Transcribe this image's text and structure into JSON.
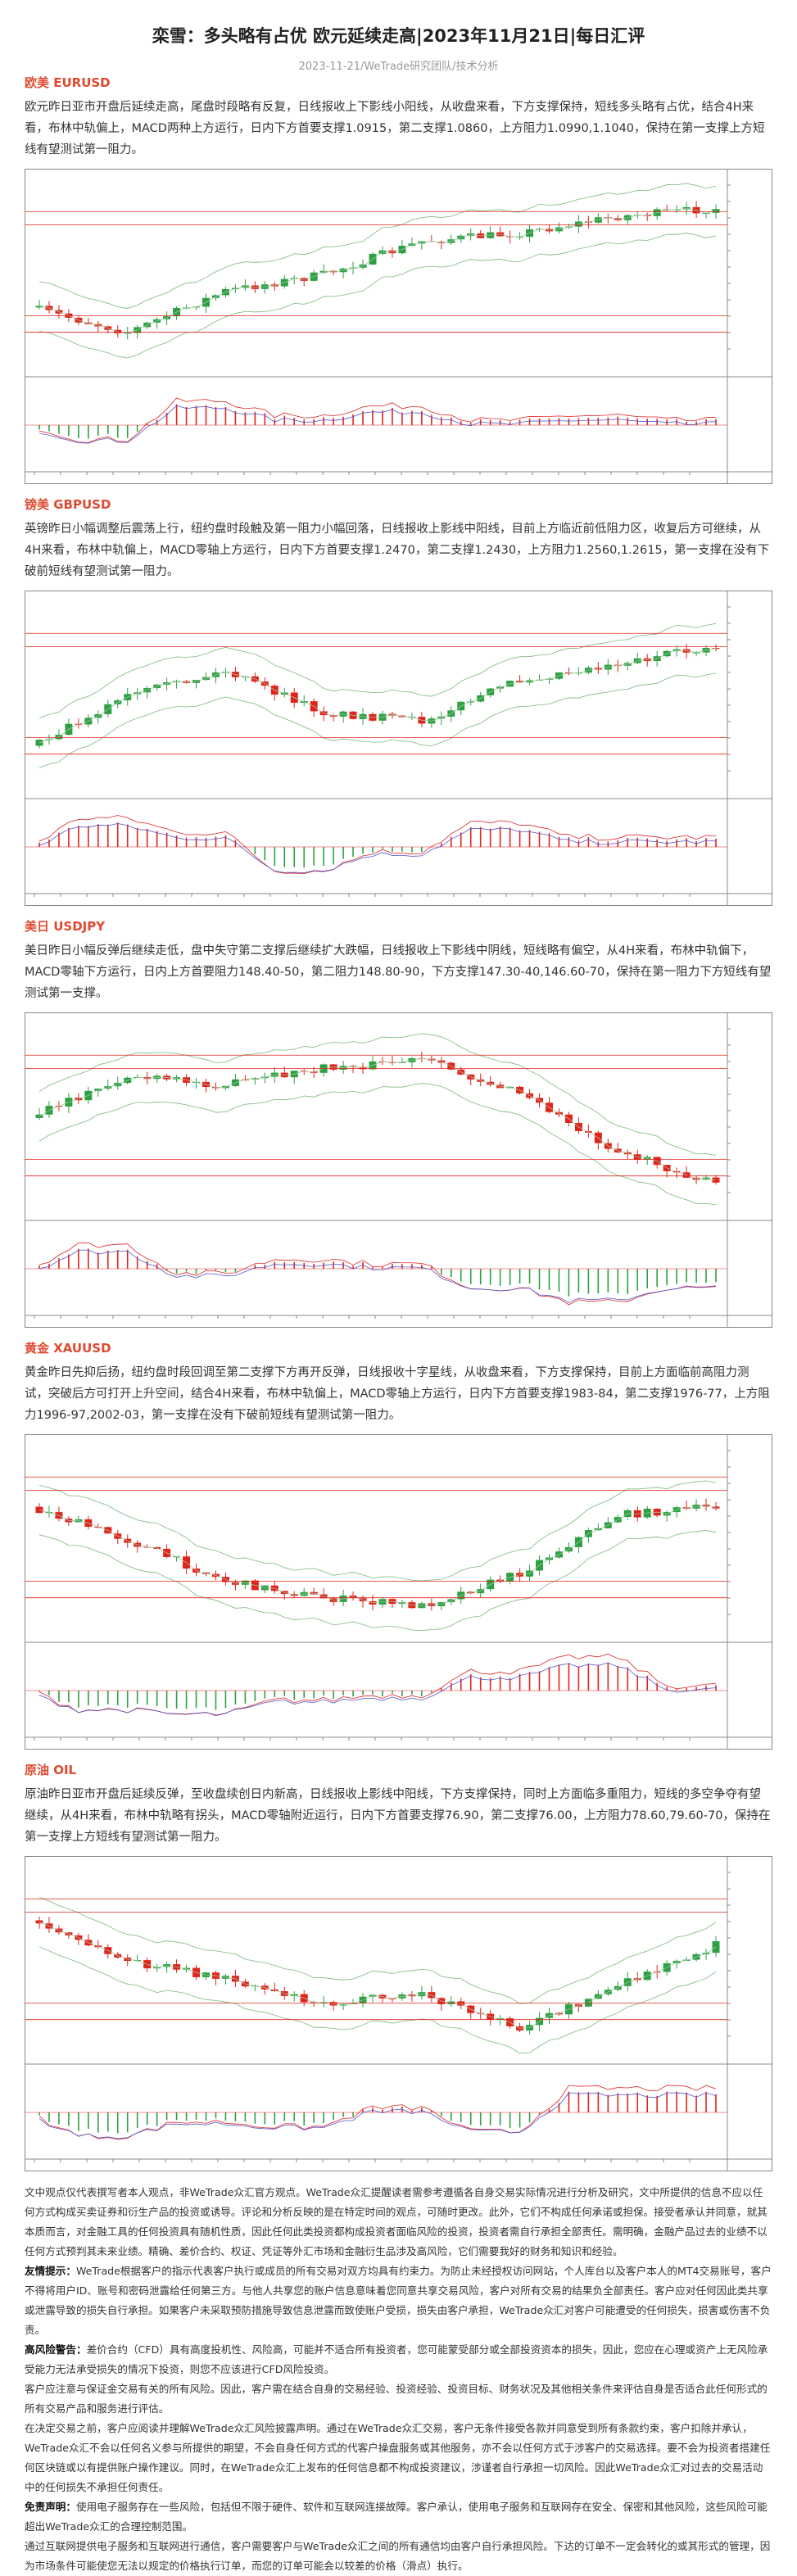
{
  "header": {
    "title": "栾雪：多头略有占优 欧元延续走高|2023年11月21日|每日汇评",
    "meta": "2023-11-21/WeTrade研究团队/技术分析"
  },
  "sections": [
    {
      "title": "欧美 EURUSD",
      "text": "欧元昨日亚市开盘后延续走高，尾盘时段略有反复，日线报收上下影线小阳线，从收盘来看，下方支撑保持，短线多头略有占优，结合4H来看，布林中轨偏上，MACD两种上方运行，日内下方首要支撑1.0915，第二支撑1.0860，上方阻力1.0990,1.1040，保持在第一支撑上方短线有望测试第一阻力。"
    },
    {
      "title": "镑美 GBPUSD",
      "text": "英镑昨日小幅调整后震荡上行，纽约盘时段触及第一阻力小幅回落，日线报收上影线中阳线，目前上方临近前低阻力区，收复后方可继续，从4H来看，布林中轨偏上，MACD零轴上方运行，日内下方首要支撑1.2470，第二支撑1.2430，上方阻力1.2560,1.2615，第一支撑在没有下破前短线有望测试第一阻力。"
    },
    {
      "title": "美日 USDJPY",
      "text": "美日昨日小幅反弹后继续走低，盘中失守第二支撑后继续扩大跌幅，日线报收上下影线中阴线，短线略有偏空，从4H来看，布林中轨偏下，MACD零轴下方运行，日内上方首要阻力148.40-50，第二阻力148.80-90，下方支撑147.30-40,146.60-70，保持在第一阻力下方短线有望测试第一支撑。"
    },
    {
      "title": "黄金 XAUUSD",
      "text": "黄金昨日先抑后扬，纽约盘时段回调至第二支撑下方再开反弹，日线报收十字星线，从收盘来看，下方支撑保持，目前上方面临前高阻力测试，突破后方可打开上升空间，结合4H来看，布林中轨偏上，MACD零轴上方运行，日内下方首要支撑1983-84，第二支撑1976-77，上方阻力1996-97,2002-03，第一支撑在没有下破前短线有望测试第一阻力。"
    },
    {
      "title": "原油 OIL",
      "text": "原油昨日亚市开盘后延续反弹，至收盘续创日内新高，日线报收上影线中阳线，下方支撑保持，同时上方面临多重阻力，短线的多空争夺有望继续，从4H来看，布林中轨略有拐头，MACD零轴附近运行，日内下方首要支撑76.90，第二支撑76.00，上方阻力78.60,79.60-70，保持在第一支撑上方短线有望测试第一阻力。"
    }
  ],
  "disclaimer": [
    {
      "text": "文中观点仅代表撰写者本人观点，非WeTrade众汇官方观点。WeTrade众汇提醒读者需参考遵循各自身交易实际情况进行分析及研究，文中所提供的信息不应以任何方式构成买卖证券和衍生产品的投资或诱导。评论和分析反映的是在特定时间的观点，可随时更改。此外，它们不构成任何承诺或担保。接受者承认并同意，就其本质而言，对金融工具的任何投资具有随机性质，因此任何此类投资都构成投资者面临风险的投资，投资者需自行承担全部责任。需明确，金融产品过去的业绩不以任何方式预判其未来业绩。精确、差价合约、权证、凭证等外汇市场和金融衍生品涉及高风险，它们需要我好的财务和知识和经验。"
    },
    {
      "lead": "友情提示：",
      "text": "WeTrade根据客户的指示代表客户执行或成员的所有交易对双方均具有约束力。为防止未经授权访问网站，个人库台以及客户本人的MT4交易账号，客户不得将用户ID、账号和密码泄露给任何第三方。与他人共享您的账户信息意味着您同意共享交易风险，客户对所有交易的结果负全部责任。客户应对任何因此类共享或泄露导致的损失自行承担。如果客户未采取预防措施导致信息泄露而致使账户受损，损失由客户承担，WeTrade众汇对客户可能遭受的任何损失，损害或伤害不负责。"
    },
    {
      "lead": "高风险警告：",
      "text": "差价合约（CFD）具有高度投机性、风险高，可能并不适合所有投资者，您可能蒙受部分或全部投资资本的损失，因此，您应在心理或资产上无风险承受能力无法承受损失的情况下投资，则您不应该进行CFD风险投资。"
    },
    {
      "text": "客户应注意与保证金交易有关的所有风险。因此，客户需在结合自身的交易经验、投资经验、投资目标、财务状况及其他相关条件来评估自身是否适合此任何形式的所有交易产品和服务进行评估。"
    },
    {
      "text": "在决定交易之前，客户应阅读并理解WeTrade众汇风险披露声明。通过在WeTrade众汇交易，客户无条件接受各款并同意受到所有条款约束，客户扣除并承认，WeTrade众汇不会以任何名义参与所提供的期望，不会自身任何方式的代客户操盘服务或其他服务，亦不会以任何方式于涉客户的交易选择。要不会为投资者搭建任何区块链或以有提供账户操作建议。同时，在WeTrade众汇上发布的任何信息都不构成投资建议，涉谨者自行承担一切风险。因此WeTrade众汇对过去的交易活动中的任何损失不承担任何责任。"
    },
    {
      "lead": "免责声明：",
      "text": "使用电子服务存在一些风险，包括但不限于硬件、软件和互联网连接故障。客户承认，使用电子服务和互联网存在安全、保密和其他风险，这些风险可能超出WeTrade众汇的合理控制范围。"
    },
    {
      "text": "通过互联网提供电子服务和互联网进行通信，客户需要客户与WeTrade众汇之间的所有通信均由客户自行承担风险。下达的订单不一定会转化的或其形式的管理，因为市场条件可能使您无法以规定的价格执行订单，而您的订单可能会以较差的价格（滑点）执行。"
    }
  ]
}
